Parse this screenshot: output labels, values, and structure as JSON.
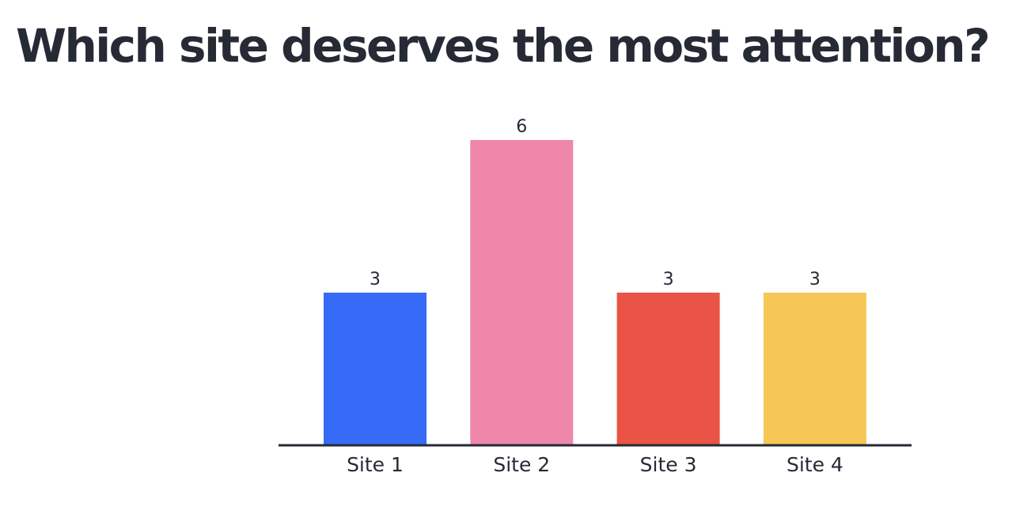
{
  "slide": {
    "question": "Which site deserves the most attention?"
  },
  "chart_data": {
    "type": "bar",
    "categories": [
      "Site 1",
      "Site 2",
      "Site 3",
      "Site 4"
    ],
    "values": [
      3,
      6,
      3,
      3
    ],
    "colors": [
      "#356bf6",
      "#ef87aa",
      "#e95446",
      "#f6c756"
    ],
    "ylim": [
      0,
      6
    ],
    "grid": false,
    "legend": "none",
    "axis_color": "#262a35"
  }
}
